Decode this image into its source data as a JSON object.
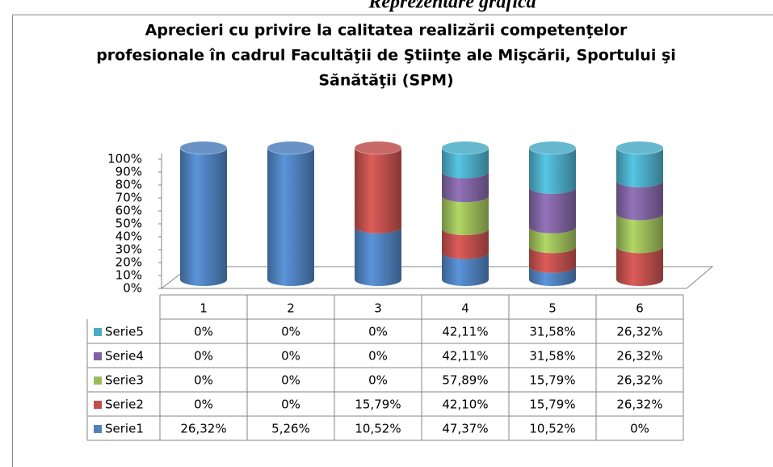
{
  "caption": "Reprezentare grafică",
  "chart_data": {
    "type": "cylinder",
    "stacking": "percent",
    "title": [
      "Aprecieri cu privire la calitatea realizării competenţelor",
      "profesionale în cadrul Facultăţii de Ştiinţe ale Mişcării, Sportului şi",
      "Sănătăţii (SPM)"
    ],
    "categories": [
      "1",
      "2",
      "3",
      "4",
      "5",
      "6"
    ],
    "series": [
      {
        "name": "Serie1",
        "color": "#4f81bd",
        "values": [
          26.32,
          5.26,
          10.52,
          47.37,
          10.52,
          0
        ],
        "value_labels": [
          "26,32%",
          "5,26%",
          "10,52%",
          "47,37%",
          "10,52%",
          "0%"
        ]
      },
      {
        "name": "Serie2",
        "color": "#c0504d",
        "values": [
          0,
          0,
          15.79,
          42.1,
          15.79,
          26.32
        ],
        "value_labels": [
          "0%",
          "0%",
          "15,79%",
          "42,10%",
          "15,79%",
          "26,32%"
        ]
      },
      {
        "name": "Serie3",
        "color": "#9bbb59",
        "values": [
          0,
          0,
          0,
          57.89,
          15.79,
          26.32
        ],
        "value_labels": [
          "0%",
          "0%",
          "0%",
          "57,89%",
          "15,79%",
          "26,32%"
        ]
      },
      {
        "name": "Serie4",
        "color": "#8064a2",
        "values": [
          0,
          0,
          0,
          42.11,
          31.58,
          26.32
        ],
        "value_labels": [
          "0%",
          "0%",
          "0%",
          "42,11%",
          "31,58%",
          "26,32%"
        ]
      },
      {
        "name": "Serie5",
        "color": "#4bacc6",
        "values": [
          0,
          0,
          0,
          42.11,
          31.58,
          26.32
        ],
        "value_labels": [
          "0%",
          "0%",
          "0%",
          "42,11%",
          "31,58%",
          "26,32%"
        ]
      }
    ],
    "ylim": [
      0,
      100
    ],
    "yticks": [
      {
        "value": 0,
        "label": "0%"
      },
      {
        "value": 10,
        "label": "10%"
      },
      {
        "value": 20,
        "label": "20%"
      },
      {
        "value": 30,
        "label": "30%"
      },
      {
        "value": 40,
        "label": "40%"
      },
      {
        "value": 50,
        "label": "50%"
      },
      {
        "value": 60,
        "label": "60%"
      },
      {
        "value": 70,
        "label": "70%"
      },
      {
        "value": 80,
        "label": "80%"
      },
      {
        "value": 90,
        "label": "90%"
      },
      {
        "value": 100,
        "label": "100%"
      }
    ],
    "grid": false,
    "data_table": true
  }
}
